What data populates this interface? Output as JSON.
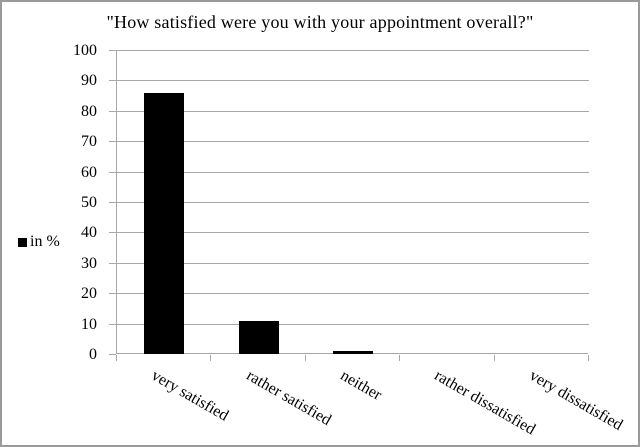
{
  "chart_data": {
    "type": "bar",
    "title": "\"How satisfied were you with your appointment overall?\"",
    "legend": "in %",
    "legend_position": "left",
    "categories": [
      "very satisfied",
      "rather satisfied",
      "neither",
      "rather dissatisfied",
      "very dissatisfied"
    ],
    "values": [
      86,
      11,
      1,
      0,
      0
    ],
    "unit": "%",
    "xlabel": "",
    "ylabel": "",
    "ylim": [
      0,
      100
    ],
    "yticks": [
      0,
      10,
      20,
      30,
      40,
      50,
      60,
      70,
      80,
      90,
      100
    ],
    "grid": "horizontal",
    "colors": {
      "bar": "#000000",
      "gridline": "#a8a8a8",
      "axis": "#a8a8a8",
      "text": "#000000",
      "frame_border": "#9a9a9a",
      "background": "#ffffff"
    }
  }
}
